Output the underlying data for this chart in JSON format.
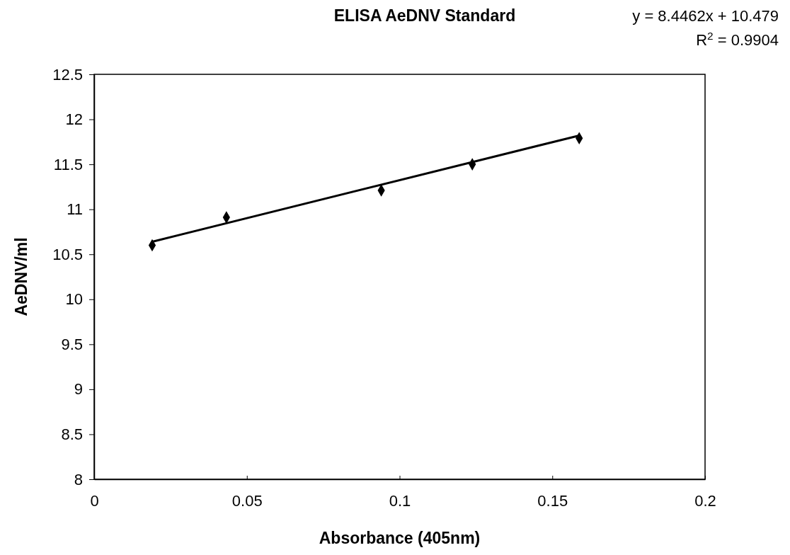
{
  "chart_data": {
    "type": "scatter",
    "title": "ELISA AeDNV Standard",
    "xlabel": "Absorbance (405nm)",
    "ylabel": "AeDNV/ml",
    "x": [
      0.019,
      0.0433,
      0.094,
      0.1238,
      0.1588
    ],
    "series": [
      {
        "color": "#000000",
        "values": [
          10.6,
          10.91,
          11.21,
          11.5,
          11.79
        ],
        "marker": "diamond"
      },
      {
        "type": "line",
        "color": "#000000",
        "x": [
          0.019,
          0.1588
        ],
        "values": [
          10.64,
          11.82
        ],
        "marker": "none"
      }
    ],
    "xlim": [
      0,
      0.2
    ],
    "xticks": [
      0,
      0.05,
      0.1,
      0.15,
      0.2
    ],
    "ylim": [
      8,
      12.5
    ],
    "yticks": [
      8,
      8.5,
      9,
      9.5,
      10,
      10.5,
      11,
      11.5,
      12,
      12.5
    ],
    "grid": false,
    "annotations": [
      "y = 8.4462x + 10.479",
      "R$^{2}$ = 0.9904"
    ]
  }
}
